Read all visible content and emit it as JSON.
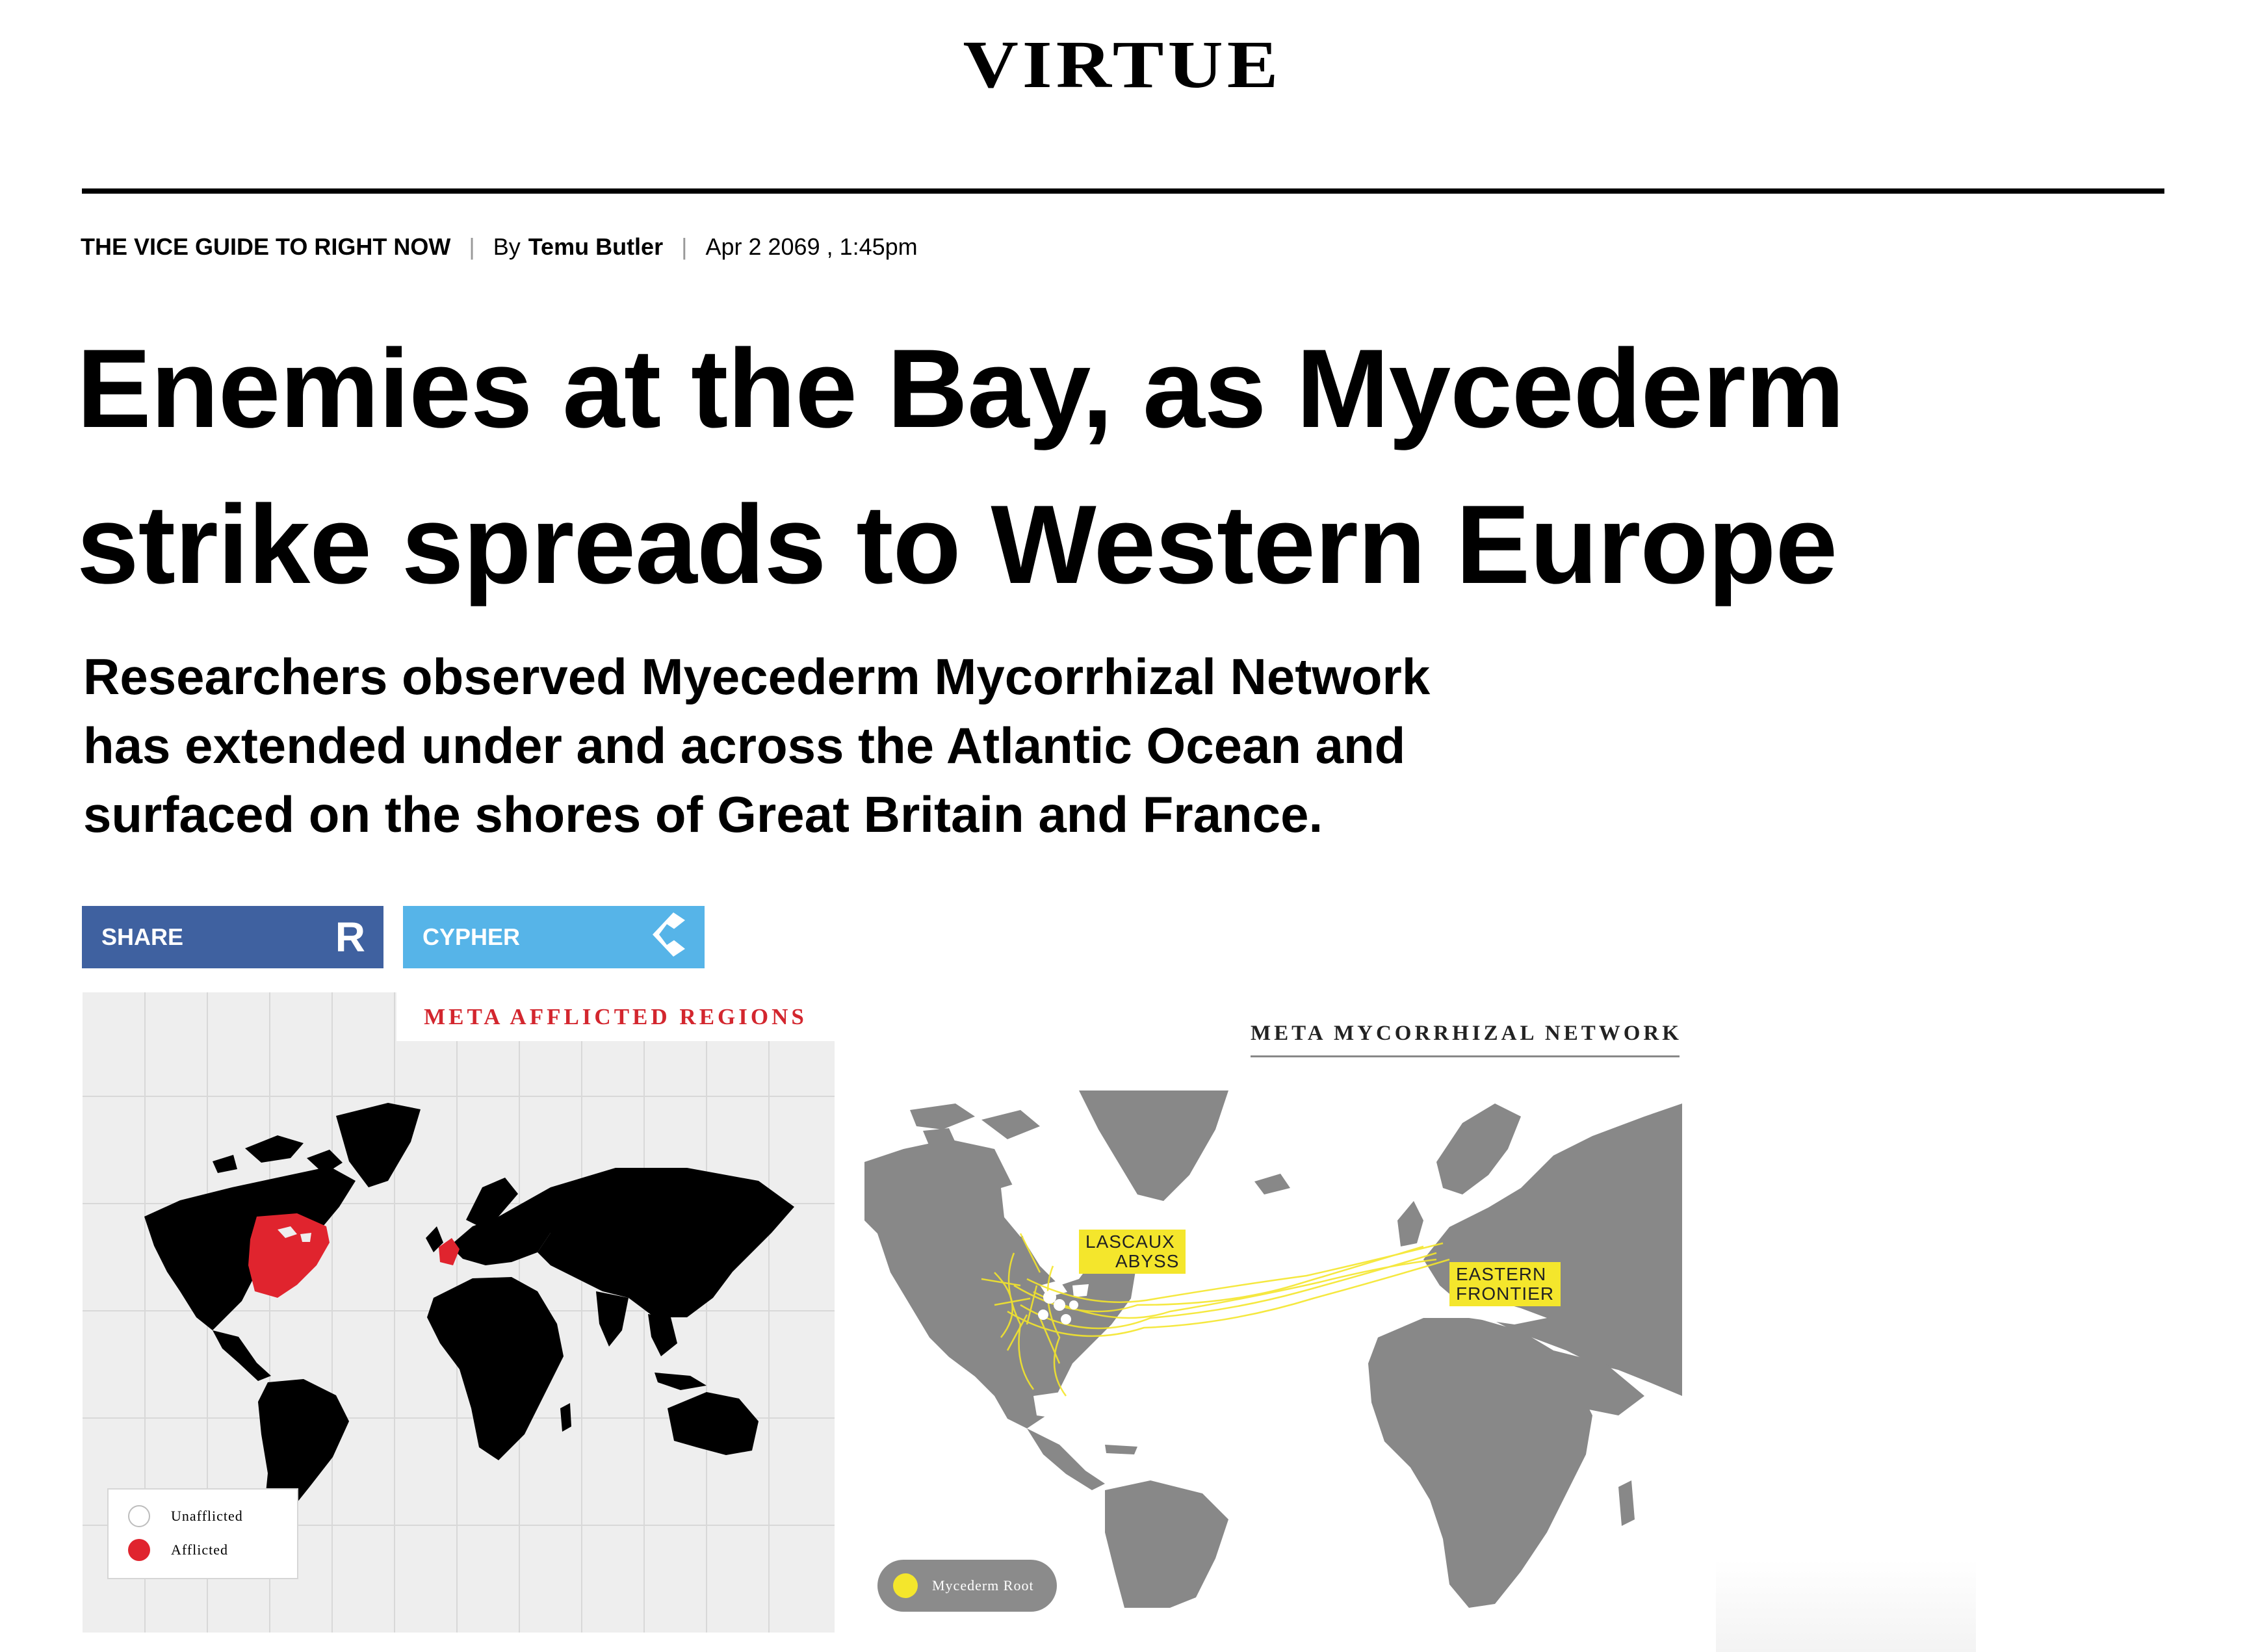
{
  "site": {
    "logo": "VIRTUE"
  },
  "meta": {
    "section": "THE VICE GUIDE TO RIGHT NOW",
    "separator": "|",
    "by_label": "By",
    "author": "Temu Butler",
    "date": "Apr 2 2069 , 1:45pm"
  },
  "article": {
    "headline_line1": "Enemies at the Bay, as Mycederm",
    "headline_line2": "strike spreads to Western Europe",
    "dek_line1": "Researchers observed Myecederm Mycorrhizal Network",
    "dek_line2": "has extended under and across the Atlantic Ocean and",
    "dek_line3": "surfaced on the shores of Great Britain and France."
  },
  "share": {
    "share_label": "SHARE",
    "share_icon": "R",
    "cypher_label": "CYPHER",
    "cypher_icon": "cypher-logo-icon",
    "colors": {
      "share": "#3f61a0",
      "cypher": "#56b4e8"
    }
  },
  "map1": {
    "title": "META AFFLICTED REGIONS",
    "legend": [
      {
        "label": "Unafflicted",
        "color": "#ffffff"
      },
      {
        "label": "Afflicted",
        "color": "#e0242e"
      }
    ],
    "colors": {
      "land": "#000000",
      "afflicted": "#e0242e",
      "background": "#eeeeee",
      "title": "#d3262e"
    }
  },
  "map2": {
    "title": "META MYCORRHIZAL NETWORK",
    "label_west_1": "LASCAUX",
    "label_west_2": "ABYSS",
    "label_east_1": "EASTERN",
    "label_east_2": "FRONTIER",
    "legend_label": "Mycederm Root",
    "colors": {
      "land": "#888888",
      "root": "#f4e62c"
    }
  }
}
